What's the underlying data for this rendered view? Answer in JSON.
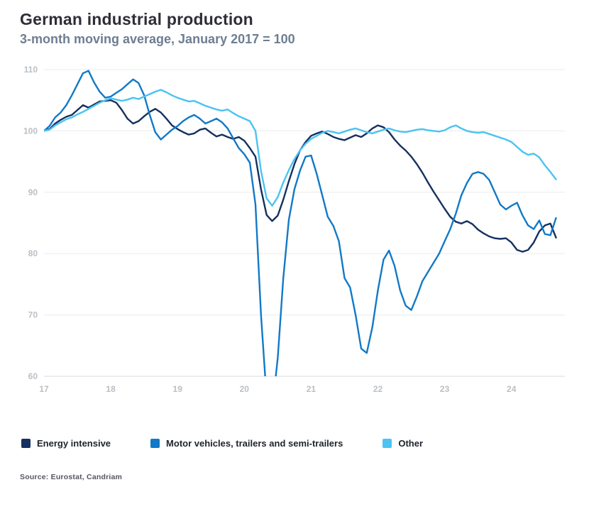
{
  "header": {
    "title": "German industrial production",
    "subtitle": "3-month moving average, January 2017 = 100"
  },
  "source": "Source: Eurostat, Candriam",
  "legend": [
    {
      "label": "Energy intensive",
      "color": "#15305f"
    },
    {
      "label": "Motor vehicles, trailers and semi-trailers",
      "color": "#1179c7"
    },
    {
      "label": "Other",
      "color": "#4ac3f2"
    }
  ],
  "chart_data": {
    "type": "line",
    "title": "German industrial production",
    "subtitle": "3-month moving average, January 2017 = 100",
    "xlabel": "",
    "ylabel": "",
    "x_start_year": 2017,
    "x_step_months": 1,
    "xlim": [
      2017,
      2024.8
    ],
    "ylim": [
      60,
      110
    ],
    "yticks": [
      60,
      70,
      80,
      90,
      100,
      110
    ],
    "xtick_years": [
      2017,
      2018,
      2019,
      2020,
      2021,
      2022,
      2023,
      2024
    ],
    "xtick_labels": [
      "17",
      "18",
      "19",
      "20",
      "21",
      "22",
      "23",
      "24"
    ],
    "grid": "horizontal-only",
    "legend_position": "bottom",
    "series": [
      {
        "name": "Energy intensive",
        "color": "#15305f",
        "values": [
          100,
          100.3,
          101.2,
          101.8,
          102.3,
          102.6,
          103.4,
          104.2,
          103.8,
          104.3,
          104.8,
          104.9,
          105,
          104.6,
          103.4,
          102,
          101.2,
          101.6,
          102.4,
          103.1,
          103.6,
          103,
          102,
          100.9,
          100.3,
          99.8,
          99.4,
          99.6,
          100.2,
          100.4,
          99.7,
          99.1,
          99.4,
          99,
          98.7,
          99,
          98.4,
          97.2,
          95.8,
          90.5,
          86.3,
          85.3,
          86.2,
          88.8,
          91.8,
          94.6,
          96.8,
          98.2,
          99.2,
          99.6,
          99.9,
          99.5,
          99,
          98.7,
          98.5,
          98.9,
          99.3,
          99,
          99.6,
          100.4,
          100.9,
          100.6,
          99.8,
          98.6,
          97.6,
          96.8,
          95.8,
          94.6,
          93.2,
          91.6,
          90.1,
          88.7,
          87.3,
          86,
          85.2,
          84.9,
          85.3,
          84.8,
          83.9,
          83.3,
          82.8,
          82.5,
          82.4,
          82.5,
          81.8,
          80.6,
          80.3,
          80.6,
          81.8,
          83.6,
          84.6,
          84.9,
          82.6
        ]
      },
      {
        "name": "Motor vehicles, trailers and semi-trailers",
        "color": "#1179c7",
        "values": [
          100,
          100.8,
          102.2,
          103,
          104.2,
          105.8,
          107.6,
          109.4,
          109.8,
          107.9,
          106.4,
          105.4,
          105.6,
          106.2,
          106.8,
          107.6,
          108.4,
          107.8,
          105.8,
          102.6,
          99.8,
          98.6,
          99.4,
          100.2,
          100.8,
          101.6,
          102.2,
          102.6,
          102,
          101.2,
          101.6,
          102,
          101.4,
          100.4,
          98.8,
          97.2,
          96.2,
          94.8,
          88,
          70,
          56.5,
          54.5,
          63,
          76,
          85.5,
          90.5,
          93.5,
          95.8,
          96,
          93,
          89.5,
          86,
          84.5,
          82,
          76,
          74.5,
          70,
          64.5,
          63.8,
          68,
          74,
          79,
          80.5,
          78,
          74,
          71.5,
          70.8,
          73,
          75.5,
          77,
          78.5,
          80,
          82,
          84,
          86.5,
          89.5,
          91.5,
          93,
          93.3,
          93,
          92,
          90,
          88,
          87.2,
          87.8,
          88.3,
          86.2,
          84.6,
          84,
          85.4,
          83.2,
          83,
          85.8
        ]
      },
      {
        "name": "Other",
        "color": "#4ac3f2",
        "values": [
          100,
          100.2,
          100.9,
          101.4,
          101.9,
          102.2,
          102.7,
          103.1,
          103.6,
          104.1,
          104.6,
          105,
          105.3,
          105.1,
          104.9,
          105.1,
          105.4,
          105.2,
          105.6,
          106,
          106.4,
          106.7,
          106.3,
          105.8,
          105.4,
          105.1,
          104.8,
          104.9,
          104.5,
          104.1,
          103.8,
          103.5,
          103.3,
          103.5,
          102.9,
          102.4,
          102,
          101.6,
          100,
          93.5,
          89,
          87.8,
          89.2,
          91.6,
          93.6,
          95.4,
          96.8,
          97.9,
          98.7,
          99.2,
          99.7,
          100,
          99.8,
          99.6,
          99.9,
          100.2,
          100.4,
          100.1,
          99.8,
          99.6,
          99.9,
          100.2,
          100.4,
          100.1,
          99.9,
          99.8,
          100,
          100.2,
          100.3,
          100.1,
          100,
          99.9,
          100.1,
          100.6,
          100.9,
          100.4,
          100,
          99.8,
          99.7,
          99.8,
          99.5,
          99.2,
          98.9,
          98.6,
          98.2,
          97.4,
          96.6,
          96.1,
          96.3,
          95.7,
          94.4,
          93.3,
          92.1
        ]
      }
    ]
  },
  "chart_style": {
    "grid_color": "#e9ebed",
    "baseline_color": "#d7dadd",
    "tick_label_color": "#b9c0c6"
  }
}
